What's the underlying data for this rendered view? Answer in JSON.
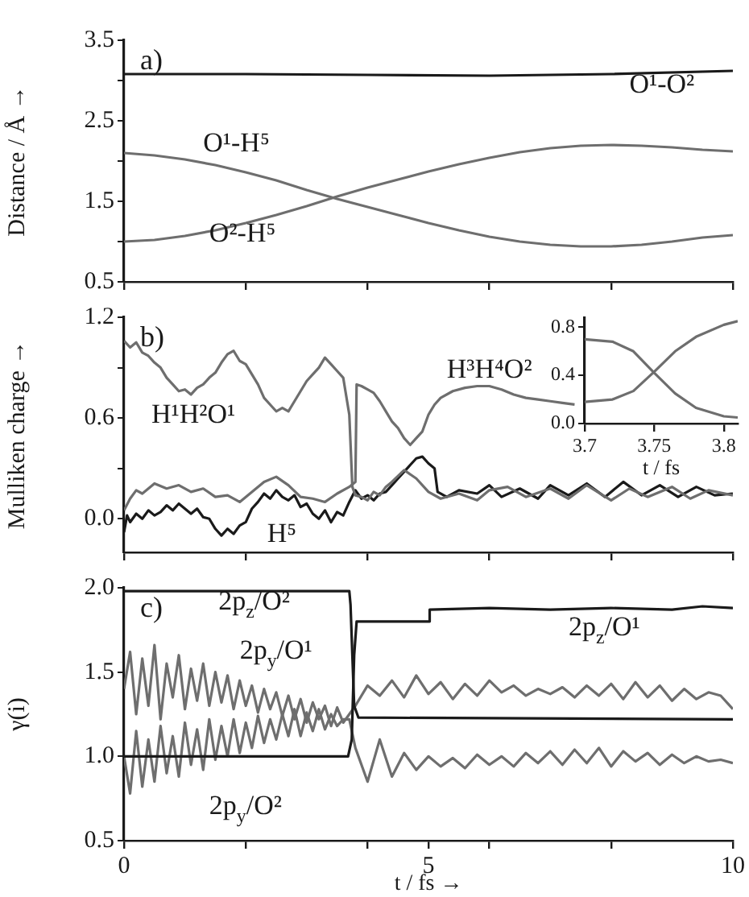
{
  "chart_data": [
    {
      "type": "line",
      "annotations": [
        "a)"
      ],
      "ylabel": "Distance / Å →",
      "xlim": [
        0,
        10
      ],
      "ylim": [
        0.5,
        3.5
      ],
      "xticks": [
        0,
        2,
        4,
        6,
        8,
        10
      ],
      "yticks": [
        0.5,
        {
          "value": 1,
          "label": null
        },
        1.5,
        {
          "value": 2,
          "label": null
        },
        2.5,
        {
          "value": 3,
          "label": null
        },
        3.5
      ],
      "tick_labels": "y",
      "marker": "none",
      "series": [
        {
          "name": "O¹-O²",
          "color": "#1a1a1a",
          "x": [
            0,
            2,
            4,
            6,
            8,
            10
          ],
          "values": [
            3.08,
            3.08,
            3.07,
            3.06,
            3.08,
            3.12
          ]
        },
        {
          "name": "O¹-H⁵",
          "color": "#6e6e6e",
          "x": [
            0,
            0.5,
            1,
            1.5,
            2,
            2.5,
            3,
            3.5,
            4,
            4.5,
            5,
            5.5,
            6,
            6.5,
            7,
            7.5,
            8,
            8.5,
            9,
            9.5,
            10
          ],
          "values": [
            2.1,
            2.07,
            2.02,
            1.95,
            1.86,
            1.76,
            1.64,
            1.53,
            1.43,
            1.33,
            1.23,
            1.14,
            1.06,
            1.0,
            0.96,
            0.94,
            0.94,
            0.96,
            1.0,
            1.05,
            1.08
          ]
        },
        {
          "name": "O²-H⁵",
          "color": "#6e6e6e",
          "x": [
            0,
            0.5,
            1,
            1.5,
            2,
            2.5,
            3,
            3.5,
            4,
            4.5,
            5,
            5.5,
            6,
            6.5,
            7,
            7.5,
            8,
            8.5,
            9,
            9.5,
            10
          ],
          "values": [
            1.0,
            1.02,
            1.07,
            1.14,
            1.23,
            1.33,
            1.44,
            1.56,
            1.67,
            1.77,
            1.87,
            1.96,
            2.04,
            2.11,
            2.16,
            2.19,
            2.2,
            2.19,
            2.17,
            2.14,
            2.12
          ]
        }
      ]
    },
    {
      "type": "line",
      "annotations": [
        "b)"
      ],
      "ylabel": "Mulliken charge →",
      "xlim": [
        0,
        10
      ],
      "ylim": [
        -0.2,
        1.2
      ],
      "xticks": [
        0,
        2,
        4,
        6,
        8,
        10
      ],
      "yticks": [
        {
          "value": 0,
          "label": "0.0"
        },
        {
          "value": 0.3,
          "label": null
        },
        0.6,
        {
          "value": 0.9,
          "label": null
        },
        1.2
      ],
      "tick_labels": "y",
      "marker": "none",
      "series": [
        {
          "name": "H¹H²O¹",
          "color": "#6e6e6e",
          "x": [
            0,
            0.1,
            0.2,
            0.3,
            0.4,
            0.5,
            0.6,
            0.7,
            0.8,
            0.9,
            1.0,
            1.1,
            1.2,
            1.3,
            1.4,
            1.5,
            1.6,
            1.7,
            1.8,
            1.9,
            2.0,
            2.1,
            2.2,
            2.3,
            2.4,
            2.5,
            2.6,
            2.7,
            2.8,
            2.9,
            3.0,
            3.1,
            3.2,
            3.3,
            3.4,
            3.5,
            3.6,
            3.7,
            3.75,
            3.8,
            3.9,
            4.0,
            4.1,
            4.2,
            4.3,
            4.4,
            4.6,
            4.8,
            5.0,
            5.2,
            5.5,
            5.8,
            6.0,
            6.3,
            6.6,
            7.0,
            7.3,
            7.6,
            8.0,
            8.3,
            8.6,
            9.0,
            9.3,
            9.6,
            10
          ],
          "values": [
            1.06,
            1.02,
            1.05,
            0.99,
            0.97,
            0.93,
            0.9,
            0.84,
            0.8,
            0.76,
            0.77,
            0.74,
            0.78,
            0.8,
            0.84,
            0.87,
            0.93,
            0.98,
            1.0,
            0.94,
            0.92,
            0.86,
            0.8,
            0.72,
            0.68,
            0.64,
            0.66,
            0.64,
            0.7,
            0.76,
            0.82,
            0.86,
            0.9,
            0.96,
            0.92,
            0.88,
            0.84,
            0.62,
            0.19,
            0.14,
            0.13,
            0.11,
            0.16,
            0.14,
            0.19,
            0.22,
            0.29,
            0.24,
            0.16,
            0.12,
            0.15,
            0.11,
            0.17,
            0.19,
            0.13,
            0.18,
            0.12,
            0.2,
            0.11,
            0.18,
            0.13,
            0.19,
            0.12,
            0.17,
            0.14
          ]
        },
        {
          "name": "H³H⁴O²",
          "color": "#6e6e6e",
          "x": [
            0,
            0.1,
            0.2,
            0.3,
            0.5,
            0.7,
            0.9,
            1.1,
            1.3,
            1.5,
            1.7,
            1.9,
            2.1,
            2.3,
            2.5,
            2.7,
            2.9,
            3.1,
            3.3,
            3.5,
            3.7,
            3.8,
            3.82,
            3.9,
            4.0,
            4.1,
            4.2,
            4.3,
            4.4,
            4.5,
            4.6,
            4.7,
            4.8,
            4.9,
            5.0,
            5.1,
            5.2,
            5.4,
            5.6,
            5.8,
            6.0,
            6.2,
            6.4,
            6.6,
            6.8,
            7.0,
            7.2,
            7.4
          ],
          "values": [
            0.05,
            0.12,
            0.17,
            0.15,
            0.21,
            0.18,
            0.2,
            0.16,
            0.18,
            0.13,
            0.14,
            0.1,
            0.16,
            0.22,
            0.25,
            0.2,
            0.13,
            0.12,
            0.1,
            0.15,
            0.19,
            0.22,
            0.8,
            0.79,
            0.77,
            0.75,
            0.7,
            0.64,
            0.58,
            0.54,
            0.48,
            0.44,
            0.48,
            0.52,
            0.62,
            0.68,
            0.72,
            0.76,
            0.78,
            0.79,
            0.79,
            0.77,
            0.74,
            0.72,
            0.71,
            0.7,
            0.69,
            0.68
          ]
        },
        {
          "name": "H⁵",
          "color": "#1a1a1a",
          "x": [
            0,
            0.05,
            0.1,
            0.2,
            0.3,
            0.4,
            0.5,
            0.6,
            0.7,
            0.8,
            0.9,
            1.0,
            1.1,
            1.2,
            1.3,
            1.4,
            1.5,
            1.6,
            1.7,
            1.8,
            1.9,
            2.0,
            2.1,
            2.2,
            2.3,
            2.4,
            2.5,
            2.6,
            2.7,
            2.8,
            2.9,
            3.0,
            3.1,
            3.2,
            3.3,
            3.4,
            3.5,
            3.6,
            3.7,
            3.8,
            3.9,
            4.0,
            4.1,
            4.2,
            4.3,
            4.4,
            4.5,
            4.6,
            4.7,
            4.8,
            4.9,
            5.0,
            5.1,
            5.15,
            5.3,
            5.5,
            5.8,
            6.0,
            6.2,
            6.5,
            6.8,
            7.0,
            7.3,
            7.6,
            7.9,
            8.2,
            8.5,
            8.8,
            9.1,
            9.4,
            9.7,
            10
          ],
          "values": [
            -0.08,
            0.02,
            -0.02,
            0.03,
            0.0,
            0.05,
            0.02,
            0.04,
            0.08,
            0.05,
            0.09,
            0.06,
            0.03,
            0.06,
            0.01,
            0.0,
            -0.06,
            -0.1,
            -0.06,
            -0.09,
            -0.04,
            -0.02,
            0.06,
            0.1,
            0.15,
            0.12,
            0.17,
            0.13,
            0.11,
            0.14,
            0.07,
            0.09,
            0.03,
            0.0,
            0.05,
            -0.02,
            0.04,
            0.02,
            0.1,
            0.17,
            0.12,
            0.14,
            0.11,
            0.15,
            0.16,
            0.2,
            0.24,
            0.28,
            0.32,
            0.36,
            0.37,
            0.33,
            0.3,
            0.16,
            0.13,
            0.17,
            0.15,
            0.2,
            0.13,
            0.18,
            0.12,
            0.2,
            0.14,
            0.21,
            0.13,
            0.22,
            0.14,
            0.2,
            0.13,
            0.19,
            0.14,
            0.15
          ]
        }
      ]
    },
    {
      "type": "line",
      "xlabel": "t / fs",
      "xlim": [
        3.7,
        3.81
      ],
      "ylim": [
        0,
        0.88
      ],
      "xticks": [
        3.7,
        3.75,
        3.8
      ],
      "yticks": [
        {
          "value": 0,
          "label": "0.0"
        },
        {
          "value": 0.4,
          "label": "0.4"
        },
        {
          "value": 0.8,
          "label": "0.8"
        }
      ],
      "marker": "none",
      "series": [
        {
          "color": "#6e6e6e",
          "x": [
            3.7,
            3.72,
            3.735,
            3.75,
            3.765,
            3.78,
            3.8,
            3.81
          ],
          "values": [
            0.7,
            0.68,
            0.6,
            0.42,
            0.25,
            0.13,
            0.06,
            0.05
          ]
        },
        {
          "color": "#6e6e6e",
          "x": [
            3.7,
            3.72,
            3.735,
            3.75,
            3.765,
            3.78,
            3.8,
            3.81
          ],
          "values": [
            0.18,
            0.2,
            0.27,
            0.43,
            0.6,
            0.72,
            0.82,
            0.85
          ]
        }
      ]
    },
    {
      "type": "line",
      "annotations": [
        "c)"
      ],
      "xlabel": "t / fs →",
      "ylabel": "γ(i)",
      "xlim": [
        0,
        10
      ],
      "ylim": [
        0.5,
        2.0
      ],
      "xticks": [
        0,
        {
          "value": 2,
          "label": null
        },
        {
          "value": 4,
          "label": null
        },
        5,
        {
          "value": 6,
          "label": null
        },
        {
          "value": 8,
          "label": null
        },
        10
      ],
      "yticks": [
        0.5,
        {
          "value": 1,
          "label": "1.0"
        },
        1.5,
        {
          "value": 2,
          "label": "2.0"
        }
      ],
      "marker": "none",
      "series": [
        {
          "name": "2p$_{z}$/O²",
          "color": "#1a1a1a",
          "x": [
            0,
            3.7,
            3.72,
            3.78,
            3.85,
            10
          ],
          "values": [
            1.98,
            1.98,
            1.9,
            1.3,
            1.23,
            1.22
          ]
        },
        {
          "name": "2p$_{z}$/O¹",
          "color": "#1a1a1a",
          "x": [
            0,
            3.68,
            3.74,
            3.78,
            3.82,
            5.0,
            5.02,
            6,
            7,
            8,
            9,
            9.5,
            10
          ],
          "values": [
            1.0,
            1.0,
            1.1,
            1.6,
            1.8,
            1.8,
            1.87,
            1.88,
            1.87,
            1.88,
            1.87,
            1.89,
            1.88
          ]
        },
        {
          "name": "2p$_{y}$/O¹",
          "color": "#6e6e6e",
          "x": [
            0,
            0.1,
            0.2,
            0.3,
            0.4,
            0.5,
            0.6,
            0.7,
            0.8,
            0.9,
            1.0,
            1.1,
            1.2,
            1.3,
            1.4,
            1.5,
            1.6,
            1.7,
            1.8,
            1.9,
            2.0,
            2.1,
            2.2,
            2.3,
            2.4,
            2.5,
            2.6,
            2.7,
            2.8,
            2.9,
            3.0,
            3.1,
            3.2,
            3.3,
            3.4,
            3.5,
            3.6,
            3.7,
            3.8,
            4.0,
            4.2,
            4.4,
            4.6,
            4.8,
            5.0,
            5.2,
            5.4,
            5.6,
            5.8,
            6.0,
            6.2,
            6.4,
            6.6,
            6.8,
            7.0,
            7.2,
            7.4,
            7.6,
            7.8,
            8.0,
            8.2,
            8.4,
            8.6,
            8.8,
            9.0,
            9.2,
            9.4,
            9.6,
            9.8,
            10.0
          ],
          "values": [
            1.4,
            1.62,
            1.25,
            1.58,
            1.3,
            1.66,
            1.22,
            1.55,
            1.35,
            1.6,
            1.28,
            1.52,
            1.33,
            1.55,
            1.3,
            1.5,
            1.32,
            1.48,
            1.28,
            1.45,
            1.3,
            1.42,
            1.26,
            1.4,
            1.28,
            1.38,
            1.24,
            1.36,
            1.22,
            1.34,
            1.2,
            1.32,
            1.22,
            1.3,
            1.18,
            1.29,
            1.2,
            1.25,
            1.3,
            1.42,
            1.36,
            1.45,
            1.35,
            1.48,
            1.37,
            1.44,
            1.34,
            1.43,
            1.36,
            1.45,
            1.38,
            1.42,
            1.36,
            1.4,
            1.37,
            1.41,
            1.35,
            1.42,
            1.36,
            1.43,
            1.34,
            1.44,
            1.35,
            1.42,
            1.33,
            1.4,
            1.34,
            1.38,
            1.36,
            1.28
          ]
        },
        {
          "name": "2p$_{y}$/O²",
          "color": "#6e6e6e",
          "x": [
            0,
            0.1,
            0.2,
            0.3,
            0.4,
            0.5,
            0.6,
            0.7,
            0.8,
            0.9,
            1.0,
            1.1,
            1.2,
            1.3,
            1.4,
            1.5,
            1.6,
            1.7,
            1.8,
            1.9,
            2.0,
            2.1,
            2.2,
            2.3,
            2.4,
            2.5,
            2.6,
            2.7,
            2.8,
            2.9,
            3.0,
            3.1,
            3.2,
            3.3,
            3.4,
            3.5,
            3.6,
            3.7,
            3.8,
            4.0,
            4.2,
            4.4,
            4.6,
            4.8,
            5.0,
            5.2,
            5.4,
            5.6,
            5.8,
            6.0,
            6.2,
            6.4,
            6.6,
            6.8,
            7.0,
            7.2,
            7.4,
            7.6,
            7.8,
            8.0,
            8.2,
            8.4,
            8.6,
            8.8,
            9.0,
            9.2,
            9.4,
            9.6,
            9.8,
            10.0
          ],
          "values": [
            1.0,
            0.78,
            1.15,
            0.82,
            1.1,
            0.85,
            1.18,
            0.9,
            1.12,
            0.88,
            1.2,
            0.95,
            1.16,
            0.92,
            1.22,
            0.98,
            1.18,
            1.0,
            1.22,
            1.02,
            1.2,
            1.05,
            1.24,
            1.08,
            1.22,
            1.1,
            1.25,
            1.12,
            1.28,
            1.12,
            1.26,
            1.15,
            1.28,
            1.16,
            1.25,
            1.18,
            1.22,
            1.22,
            1.05,
            0.85,
            1.1,
            0.88,
            1.02,
            0.92,
            1.0,
            0.94,
            0.99,
            0.93,
            1.01,
            0.95,
            1.0,
            0.94,
            1.02,
            0.96,
            1.03,
            0.95,
            1.04,
            0.96,
            1.05,
            0.94,
            1.03,
            0.97,
            1.02,
            0.95,
            1.01,
            0.96,
            1.0,
            0.97,
            0.98,
            0.96
          ]
        }
      ]
    }
  ]
}
